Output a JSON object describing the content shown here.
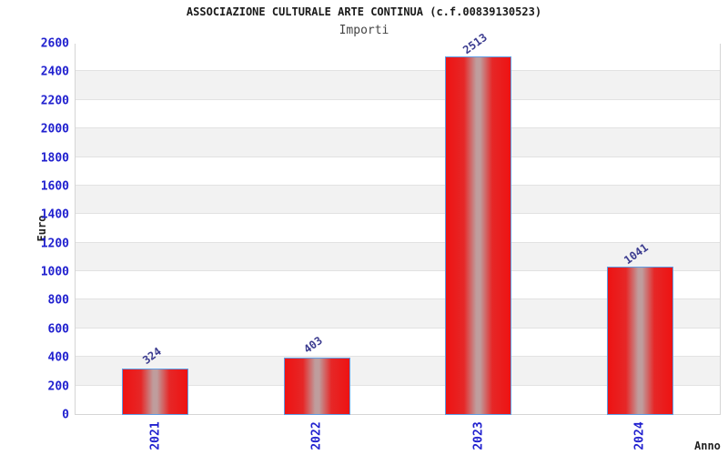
{
  "header": {
    "title": "ASSOCIAZIONE CULTURALE ARTE CONTINUA (c.f.00839130523)",
    "subtitle": "Importi"
  },
  "chart_data": {
    "type": "bar",
    "categories": [
      "2021",
      "2022",
      "2023",
      "2024"
    ],
    "values": [
      324,
      403,
      2513,
      1041
    ],
    "title": "ASSOCIAZIONE CULTURALE ARTE CONTINUA (c.f.00839130523)",
    "subtitle": "Importi",
    "xlabel": "Anno",
    "ylabel": "Euro",
    "ylim": [
      0,
      2600
    ],
    "ytick_step": 200,
    "legend": "none",
    "grid": "horizontal gridlines every 200; alternating white/gray bands starting white at 0-200",
    "colors": {
      "bar_red": "#ee1212",
      "bar_red_mid": "#e62727",
      "bar_center_light": "#bf9d9d",
      "bar_border": "#5f9de4",
      "axis_tick_label": "#2121cf",
      "value_label": "#3b3b8f",
      "band_gray": "#f2f2f2",
      "gridline": "#e2e2e2",
      "plot_border": "#d5d5d5",
      "title_text": "#1a1a1a",
      "subtitle_text": "#444444"
    }
  }
}
